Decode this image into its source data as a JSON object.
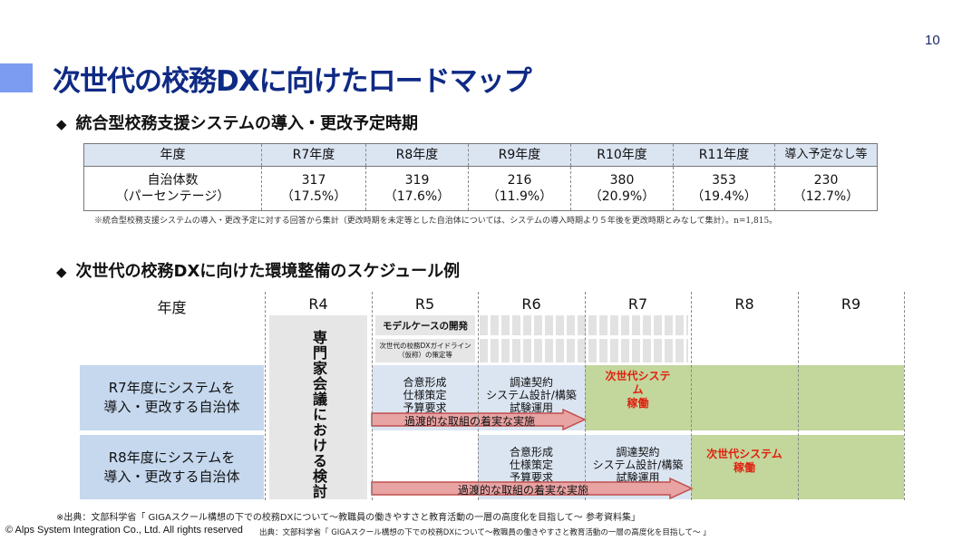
{
  "page_number": "10",
  "title": "次世代の校務DXに向けたロードマップ",
  "section1": {
    "heading": "統合型校務支援システムの導入・更改予定時期",
    "bullet": "◆",
    "table": {
      "headers": [
        "年度",
        "R7年度",
        "R8年度",
        "R9年度",
        "R10年度",
        "R11年度",
        "導入予定なし等"
      ],
      "row_label_line1": "自治体数",
      "row_label_line2": "（パーセンテージ）",
      "counts": [
        "317",
        "319",
        "216",
        "380",
        "353",
        "230"
      ],
      "percents": [
        "（17.5%）",
        "（17.6%）",
        "（11.9%）",
        "（20.9%）",
        "（19.4%）",
        "（12.7%）"
      ]
    },
    "note": "※統合型校務支援システムの導入・更改予定に対する回答から集計（更改時期を未定等とした自治体については、システムの導入時期より５年後を更改時期とみなして集計）。n=1,815。"
  },
  "section2": {
    "heading": "次世代の校務DXに向けた環境整備のスケジュール例",
    "bullet": "◆",
    "header_label": "年度",
    "years": [
      "R4",
      "R5",
      "R6",
      "R7",
      "R8",
      "R9"
    ],
    "r4_box": "専門家会議における検討",
    "model_case": "モデルケースの開発",
    "guideline_line1": "次世代の校務DXガイドライン",
    "guideline_line2": "（仮称）の策定等",
    "rows": [
      {
        "label_line1": "R7年度にシステムを",
        "label_line2": "導入・更改する自治体",
        "step1": [
          "合意形成",
          "仕様策定",
          "予算要求"
        ],
        "step2": [
          "調達契約",
          "システム設計/構築",
          "試験運用"
        ],
        "arrow": "過渡的な取組の着実な実施",
        "operate_line1": "次世代システム",
        "operate_line2": "稼働"
      },
      {
        "label_line1": "R8年度にシステムを",
        "label_line2": "導入・更改する自治体",
        "step1": [
          "合意形成",
          "仕様策定",
          "予算要求"
        ],
        "step2": [
          "調達契約",
          "システム設計/構築",
          "試験運用"
        ],
        "arrow": "過渡的な取組の着実な実施",
        "operate_line1": "次世代システム",
        "operate_line2": "稼働"
      }
    ]
  },
  "footer": {
    "source1": "※出典：文部科学省「 GIGAスクール構想の下での校務DXについて～教職員の働きやすさと教育活動の一層の高度化を目指して～ 参考資料集」",
    "copyright": "© Alps System Integration Co., Ltd. All rights reserved",
    "source2": "出典：文部科学省「 GIGAスクール構想の下での校務DXについて～教職員の働きやすさと教育活動の一層の高度化を目指して～ 」"
  },
  "colors": {
    "title": "#0f2a84",
    "title_bar": "#7b9cf0",
    "table_header": "#dbe4f1",
    "label_blue": "#c5d8ee",
    "step_blue": "#dbe5f2",
    "operate_green": "#c3d69b",
    "operate_red": "#e02010",
    "arrow_fill": "#e8a3a3",
    "arrow_stroke": "#c0504d"
  }
}
